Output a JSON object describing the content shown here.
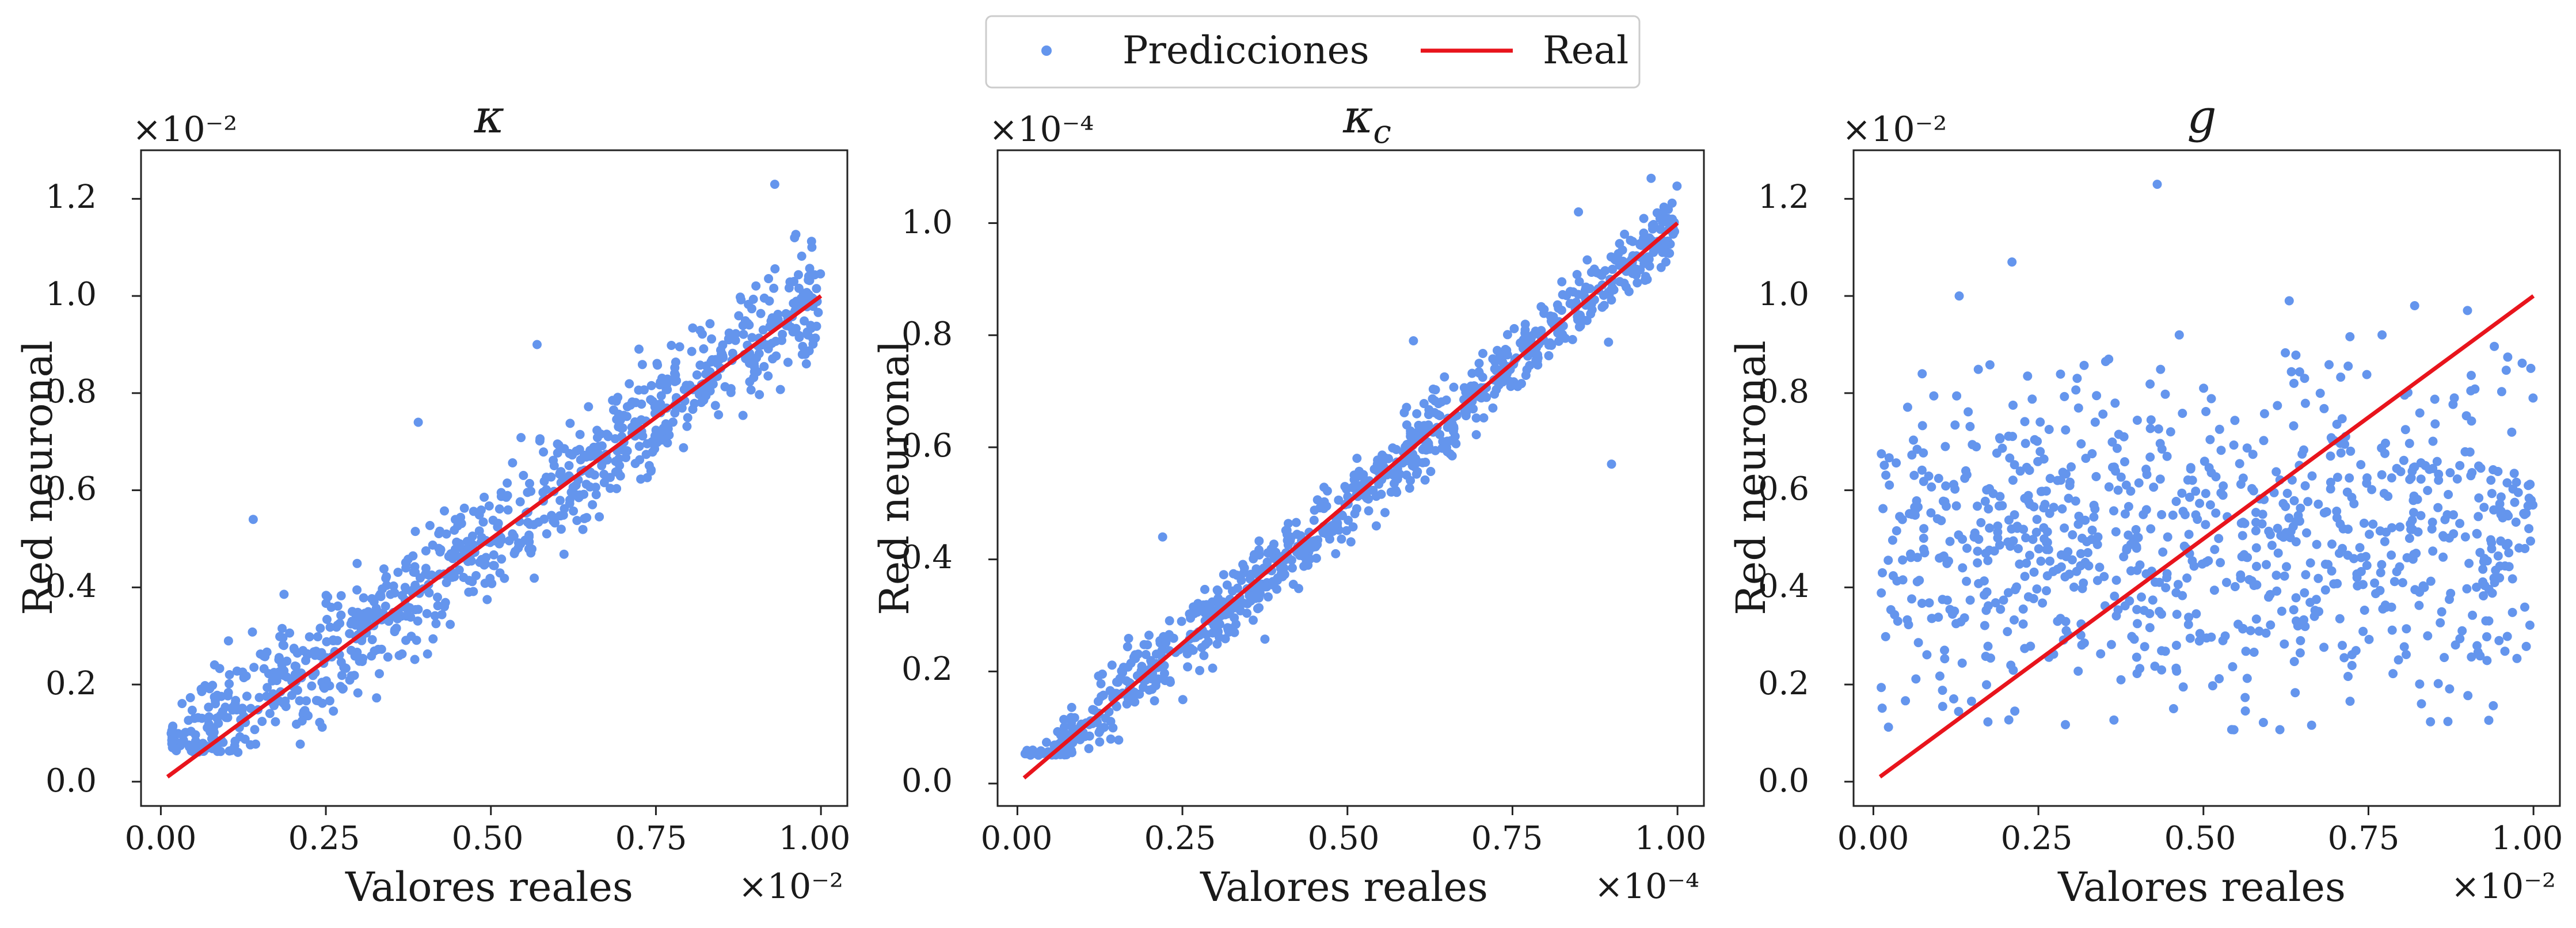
{
  "legend": {
    "items": [
      {
        "label": "Predicciones",
        "marker": "dot",
        "color": "#6495ed"
      },
      {
        "label": "Real",
        "marker": "line",
        "color": "#e8141c"
      }
    ],
    "placement": "top-center"
  },
  "colors": {
    "predictions": "#6495ed",
    "real": "#e8141c",
    "axis": "#222222"
  },
  "chart_data": [
    {
      "type": "scatter",
      "title": "κ",
      "xlabel": "Valores reales",
      "ylabel": "Red neuronal",
      "x_scale_label": "×10⁻²",
      "y_scale_label": "×10⁻²",
      "xlim": [
        -0.03,
        1.04
      ],
      "ylim": [
        -0.05,
        1.3
      ],
      "xticks": [
        0.0,
        0.25,
        0.5,
        0.75,
        1.0
      ],
      "xtick_labels": [
        "0.00",
        "0.25",
        "0.50",
        "0.75",
        "1.00"
      ],
      "yticks": [
        0.0,
        0.2,
        0.4,
        0.6,
        0.8,
        1.0,
        1.2
      ],
      "ytick_labels": [
        "0.0",
        "0.2",
        "0.4",
        "0.6",
        "0.8",
        "1.0",
        "1.2"
      ],
      "series": [
        {
          "name": "Predicciones",
          "relation": "close to identity, wider spread",
          "n_points": 900,
          "x_range": [
            0.01,
            1.0
          ],
          "spread": 0.07
        },
        {
          "name": "Real",
          "type": "line",
          "x": [
            0.01,
            1.0
          ],
          "y": [
            0.01,
            1.0
          ]
        }
      ],
      "outliers": [
        [
          0.93,
          1.23
        ],
        [
          0.96,
          1.12
        ],
        [
          0.14,
          0.54
        ],
        [
          0.57,
          0.9
        ],
        [
          0.39,
          0.74
        ]
      ]
    },
    {
      "type": "scatter",
      "title": "κ_c",
      "xlabel": "Valores reales",
      "ylabel": "Red neuronal",
      "x_scale_label": "×10⁻⁴",
      "y_scale_label": "×10⁻⁴",
      "xlim": [
        -0.03,
        1.04
      ],
      "ylim": [
        -0.04,
        1.13
      ],
      "xticks": [
        0.0,
        0.25,
        0.5,
        0.75,
        1.0
      ],
      "xtick_labels": [
        "0.00",
        "0.25",
        "0.50",
        "0.75",
        "1.00"
      ],
      "yticks": [
        0.0,
        0.2,
        0.4,
        0.6,
        0.8,
        1.0
      ],
      "ytick_labels": [
        "0.0",
        "0.2",
        "0.4",
        "0.6",
        "0.8",
        "1.0"
      ],
      "series": [
        {
          "name": "Predicciones",
          "relation": "tight around identity",
          "n_points": 900,
          "x_range": [
            0.01,
            1.0
          ],
          "spread": 0.03
        },
        {
          "name": "Real",
          "type": "line",
          "x": [
            0.01,
            1.0
          ],
          "y": [
            0.01,
            1.0
          ]
        }
      ],
      "outliers": [
        [
          0.96,
          1.08
        ],
        [
          0.9,
          0.57
        ],
        [
          0.6,
          0.79
        ],
        [
          0.22,
          0.44
        ],
        [
          0.85,
          1.02
        ]
      ]
    },
    {
      "type": "scatter",
      "title": "g",
      "xlabel": "Valores reales",
      "ylabel": "Red neuronal",
      "x_scale_label": "×10⁻²",
      "y_scale_label": "×10⁻²",
      "xlim": [
        -0.03,
        1.04
      ],
      "ylim": [
        -0.05,
        1.3
      ],
      "xticks": [
        0.0,
        0.25,
        0.5,
        0.75,
        1.0
      ],
      "xtick_labels": [
        "0.00",
        "0.25",
        "0.50",
        "0.75",
        "1.00"
      ],
      "yticks": [
        0.0,
        0.2,
        0.4,
        0.6,
        0.8,
        1.0,
        1.2
      ],
      "ytick_labels": [
        "0.0",
        "0.2",
        "0.4",
        "0.6",
        "0.8",
        "1.0",
        "1.2"
      ],
      "series": [
        {
          "name": "Predicciones",
          "relation": "uncorrelated cloud, y roughly 0.1–0.9",
          "n_points": 900,
          "x_range": [
            0.01,
            1.0
          ],
          "y_center": 0.5,
          "spread": 0.17
        },
        {
          "name": "Real",
          "type": "line",
          "x": [
            0.01,
            1.0
          ],
          "y": [
            0.01,
            1.0
          ]
        }
      ],
      "outliers": [
        [
          0.43,
          1.23
        ],
        [
          0.21,
          1.07
        ],
        [
          0.13,
          1.0
        ],
        [
          0.63,
          0.99
        ],
        [
          0.9,
          0.97
        ],
        [
          0.82,
          0.98
        ]
      ]
    }
  ]
}
